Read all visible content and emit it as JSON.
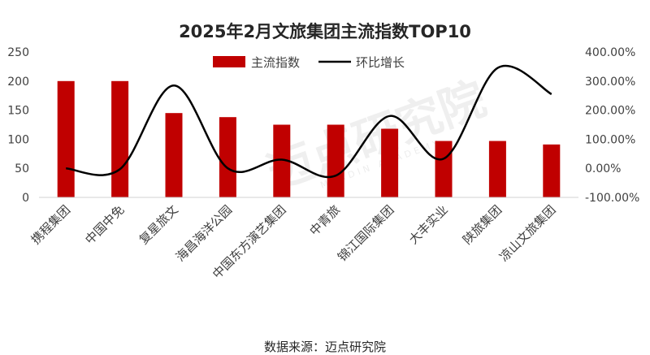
{
  "chart_data": {
    "type": "bar",
    "title": "2025年2月文旅集团主流指数TOP10",
    "categories": [
      "携程集团",
      "中国中免",
      "复星旅文",
      "海昌海洋公园",
      "中国东方演艺集团",
      "中青旅",
      "锦江国际集团",
      "大丰实业",
      "陕旅集团",
      "凉山文旅集团"
    ],
    "series": [
      {
        "name": "主流指数",
        "axis": "left",
        "chart": "bar",
        "color": "#c00000",
        "values": [
          200,
          200,
          145,
          138,
          125,
          125,
          118,
          97,
          97,
          91
        ]
      },
      {
        "name": "环比增长",
        "axis": "right",
        "chart": "line",
        "color": "#000000",
        "smooth": true,
        "values": [
          0,
          -3,
          285,
          0,
          30,
          -25,
          180,
          33,
          345,
          255
        ]
      }
    ],
    "y_left": {
      "min": 0,
      "max": 250,
      "step": 50,
      "ticks": [
        "0",
        "50",
        "100",
        "150",
        "200",
        "250"
      ]
    },
    "y_right": {
      "min": -100,
      "max": 400,
      "step": 100,
      "ticks": [
        "-100.00%",
        "0.00%",
        "100.00%",
        "200.00%",
        "300.00%",
        "400.00%"
      ]
    },
    "legend_position": "top",
    "grid": false
  },
  "source_text": "数据来源：迈点研究院",
  "watermark": {
    "text": "迈点研究院",
    "subtext": "MEADIN ACADEMY"
  }
}
